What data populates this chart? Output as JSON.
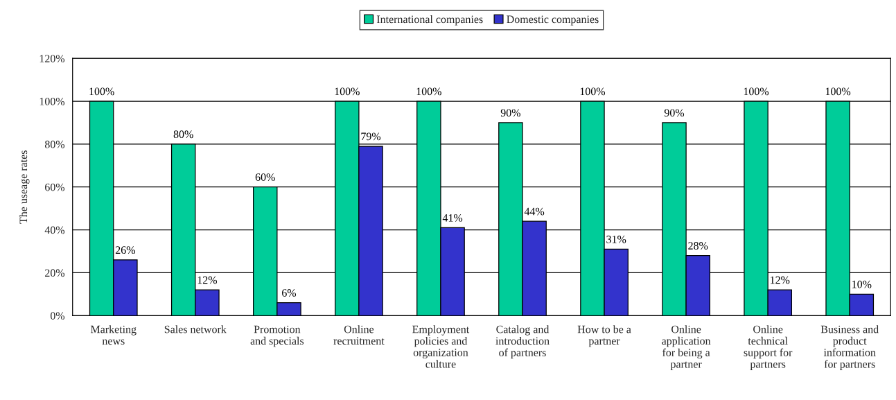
{
  "chart_data": {
    "type": "bar",
    "ylabel": "The useage rates",
    "categories": [
      "Marketing\nnews",
      "Sales network",
      "Promotion\nand specials",
      "Online\nrecruitment",
      "Employment\npolicies and\norganization\nculture",
      "Catalog and\nintroduction\nof partners",
      "How to be a\npartner",
      "Online\napplication\nfor being a\npartner",
      "Online\ntechnical\nsupport for\npartners",
      "Business and\nproduct\ninformation\nfor partners"
    ],
    "series": [
      {
        "name": "International companies",
        "color": "#00cc99",
        "values": [
          100,
          80,
          60,
          100,
          100,
          90,
          100,
          90,
          100,
          100
        ],
        "value_labels": [
          "100%",
          "80%",
          "60%",
          "100%",
          "100%",
          "90%",
          "100%",
          "90%",
          "100%",
          "100%"
        ]
      },
      {
        "name": "Domestic companies",
        "color": "#3333cc",
        "values": [
          26,
          12,
          6,
          79,
          41,
          44,
          31,
          28,
          12,
          10
        ],
        "value_labels": [
          "26%",
          "12%",
          "6%",
          "79%",
          "41%",
          "44%",
          "31%",
          "28%",
          "12%",
          "10%"
        ]
      }
    ],
    "ylim": [
      0,
      120
    ],
    "yticks": [
      {
        "value": 0,
        "label": "0%"
      },
      {
        "value": 20,
        "label": "20%"
      },
      {
        "value": 40,
        "label": "40%"
      },
      {
        "value": 60,
        "label": "60%"
      },
      {
        "value": 80,
        "label": "80%"
      },
      {
        "value": 100,
        "label": "100%"
      },
      {
        "value": 120,
        "label": "120%"
      }
    ],
    "grid": "y",
    "legend": "top"
  }
}
